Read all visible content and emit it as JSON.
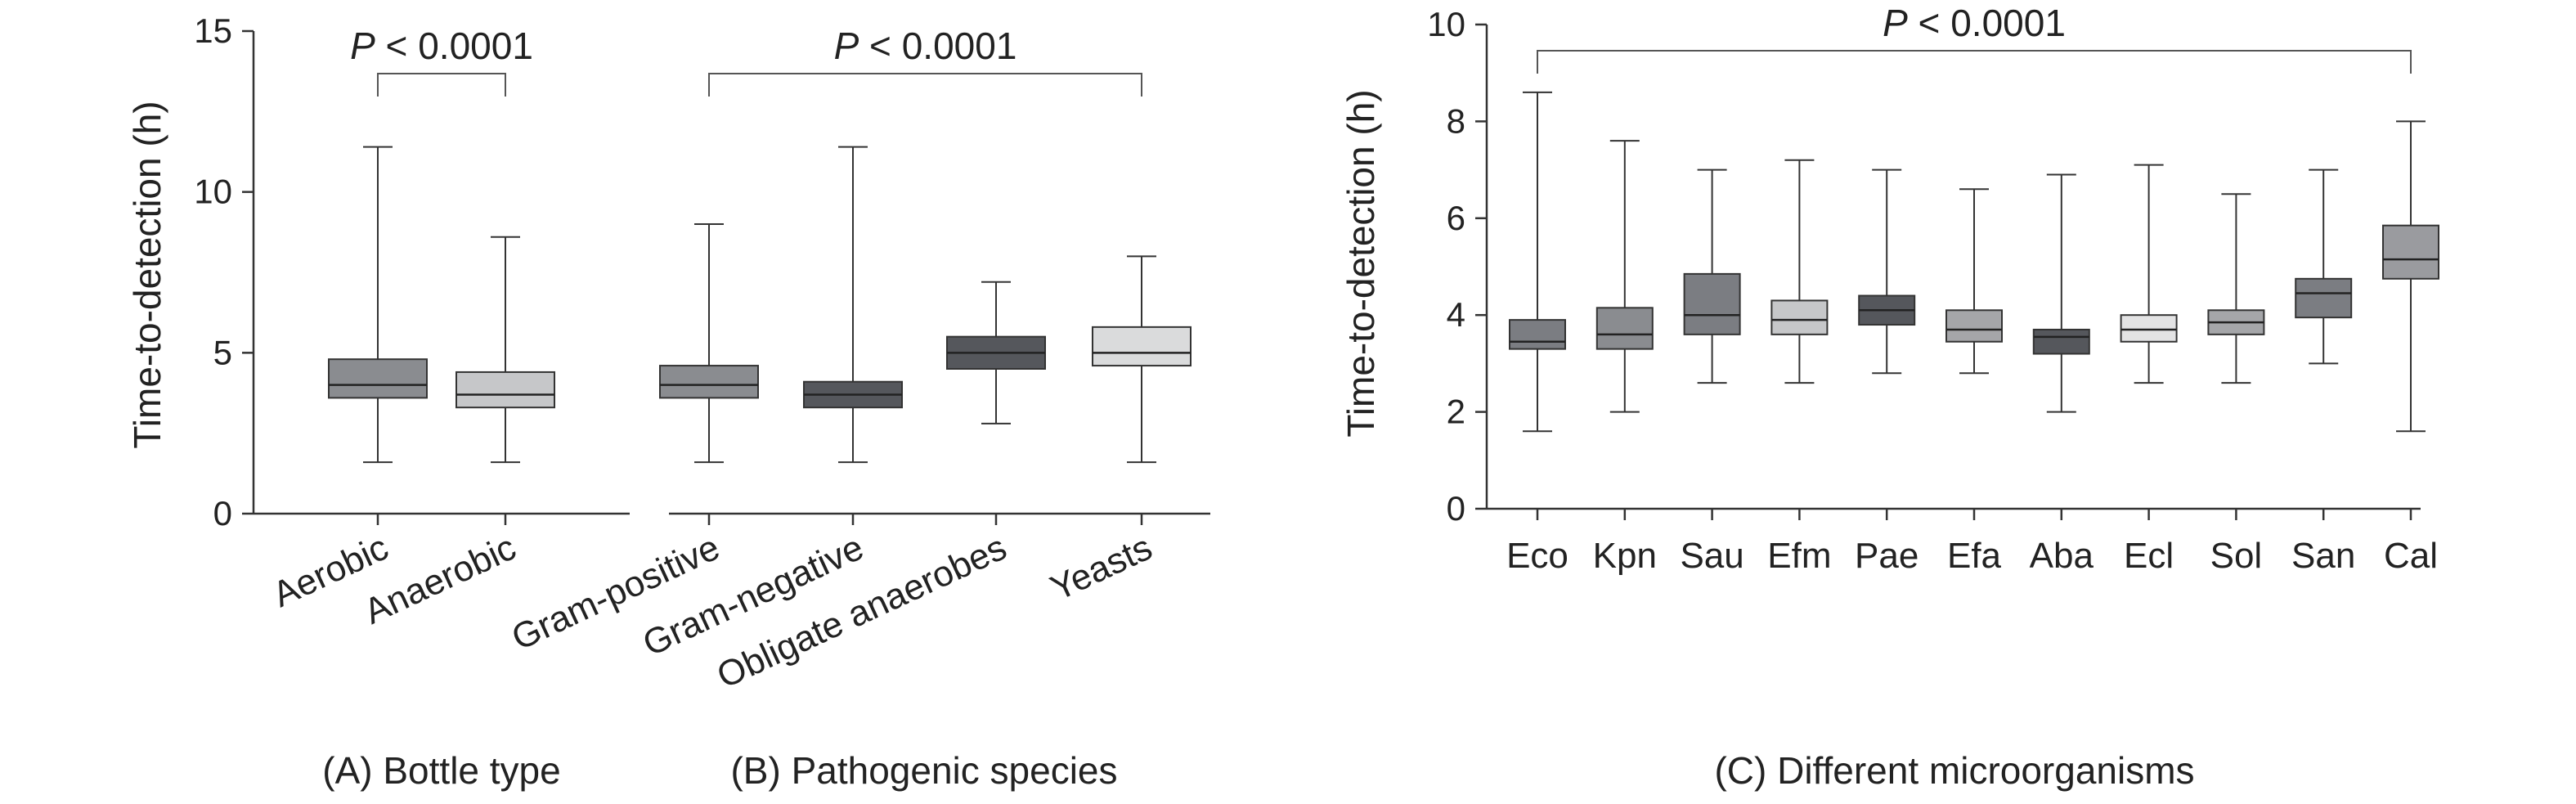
{
  "chart_data": [
    {
      "type": "boxplot",
      "ylabel": "Time-to-detection (h)",
      "ylim": [
        0,
        15
      ],
      "yticks": [
        0,
        5,
        10,
        15
      ],
      "panels": [
        {
          "caption": "(A) Bottle type",
          "categories": [
            "Aerobic",
            "Anaerobic"
          ],
          "boxes": [
            {
              "min": 1.6,
              "q1": 3.6,
              "median": 4.0,
              "q3": 4.8,
              "max": 11.4,
              "color": "#8a8c90"
            },
            {
              "min": 1.6,
              "q1": 3.3,
              "median": 3.7,
              "q3": 4.4,
              "max": 8.6,
              "color": "#c6c7c9"
            }
          ],
          "comparison": {
            "label_prefix": "P",
            "label_text": " < 0.0001",
            "from": 0,
            "to": 1
          }
        },
        {
          "caption": "(B) Pathogenic species",
          "categories": [
            "Gram-positive",
            "Gram-negative",
            "Obligate anaerobes",
            "Yeasts"
          ],
          "boxes": [
            {
              "min": 1.6,
              "q1": 3.6,
              "median": 4.0,
              "q3": 4.6,
              "max": 9.0,
              "color": "#8a8c90"
            },
            {
              "min": 1.6,
              "q1": 3.3,
              "median": 3.7,
              "q3": 4.1,
              "max": 11.4,
              "color": "#55575c"
            },
            {
              "min": 2.8,
              "q1": 4.5,
              "median": 5.0,
              "q3": 5.5,
              "max": 7.2,
              "color": "#55575c"
            },
            {
              "min": 1.6,
              "q1": 4.6,
              "median": 5.0,
              "q3": 5.8,
              "max": 8.0,
              "color": "#dadbdc"
            }
          ],
          "comparison": {
            "label_prefix": "P",
            "label_text": " < 0.0001",
            "from": 0,
            "to": 3
          }
        }
      ]
    },
    {
      "type": "boxplot",
      "caption": "(C) Different microorganisms",
      "ylabel": "Time-to-detection (h)",
      "ylim": [
        0,
        10
      ],
      "yticks": [
        0,
        2,
        4,
        6,
        8,
        10
      ],
      "categories": [
        "Eco",
        "Kpn",
        "Sau",
        "Efm",
        "Pae",
        "Efa",
        "Aba",
        "Ecl",
        "Sol",
        "San",
        "Cal"
      ],
      "boxes": [
        {
          "min": 1.6,
          "q1": 3.3,
          "median": 3.45,
          "q3": 3.9,
          "max": 8.6,
          "color": "#7b7d82"
        },
        {
          "min": 2.0,
          "q1": 3.3,
          "median": 3.6,
          "q3": 4.15,
          "max": 7.6,
          "color": "#8a8c90"
        },
        {
          "min": 2.6,
          "q1": 3.6,
          "median": 4.0,
          "q3": 4.85,
          "max": 7.0,
          "color": "#7b7d82"
        },
        {
          "min": 2.6,
          "q1": 3.6,
          "median": 3.9,
          "q3": 4.3,
          "max": 7.2,
          "color": "#c6c7c9"
        },
        {
          "min": 2.8,
          "q1": 3.8,
          "median": 4.1,
          "q3": 4.4,
          "max": 7.0,
          "color": "#55575c"
        },
        {
          "min": 2.8,
          "q1": 3.45,
          "median": 3.7,
          "q3": 4.1,
          "max": 6.6,
          "color": "#a5a6a9"
        },
        {
          "min": 2.0,
          "q1": 3.2,
          "median": 3.55,
          "q3": 3.7,
          "max": 6.9,
          "color": "#55575c"
        },
        {
          "min": 2.6,
          "q1": 3.45,
          "median": 3.7,
          "q3": 4.0,
          "max": 7.1,
          "color": "#e3e3e4"
        },
        {
          "min": 2.6,
          "q1": 3.6,
          "median": 3.85,
          "q3": 4.1,
          "max": 6.5,
          "color": "#a5a6a9"
        },
        {
          "min": 3.0,
          "q1": 3.95,
          "median": 4.45,
          "q3": 4.75,
          "max": 7.0,
          "color": "#7b7d82"
        },
        {
          "min": 1.6,
          "q1": 4.75,
          "median": 5.15,
          "q3": 5.85,
          "max": 8.0,
          "color": "#9a9b9f"
        }
      ],
      "comparison": {
        "label_prefix": "P",
        "label_text": " < 0.0001",
        "from": 0,
        "to": 10
      }
    }
  ]
}
